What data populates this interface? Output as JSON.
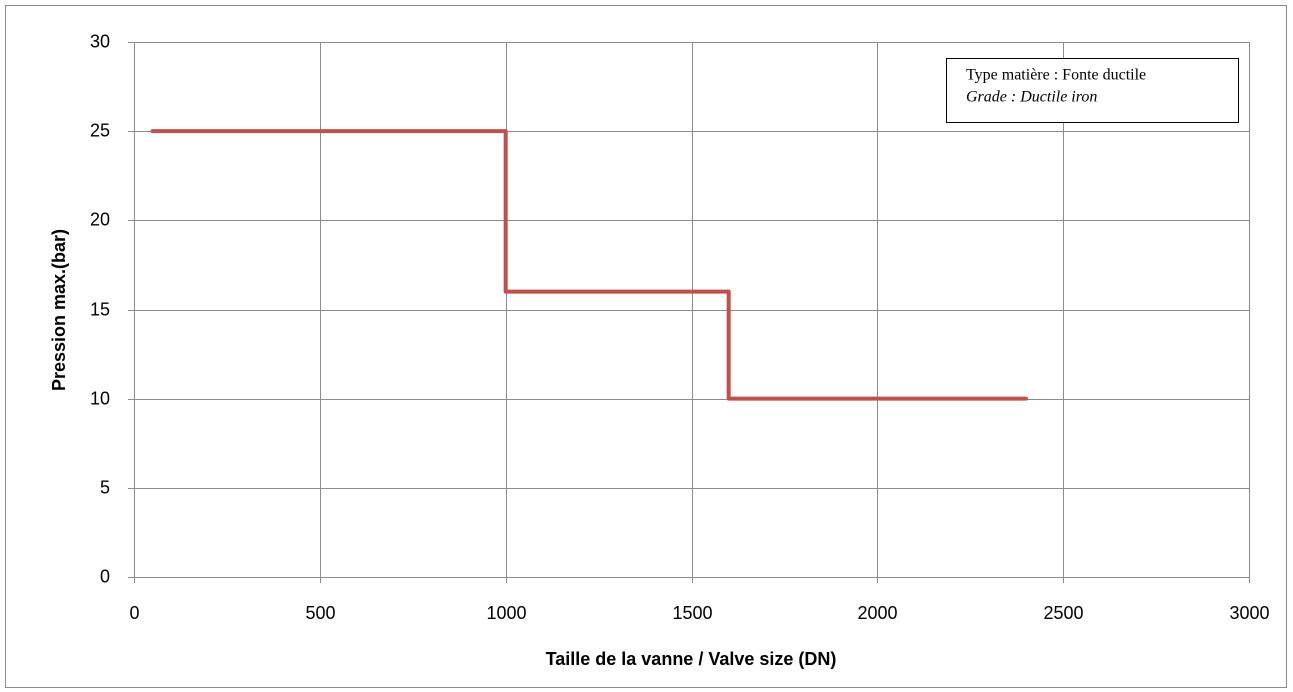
{
  "chart_data": {
    "type": "line",
    "x": [
      50,
      1000,
      1000,
      1600,
      1600,
      2400
    ],
    "values": [
      25,
      25,
      16,
      16,
      10,
      10
    ],
    "color": "#c0504d",
    "xlabel": "Taille de la vanne / Valve size (DN)",
    "ylabel": "Pression max.(bar)",
    "xlim": [
      0,
      3000
    ],
    "xticks": [
      0,
      500,
      1000,
      1500,
      2000,
      2500,
      3000
    ],
    "ylim": [
      0,
      30
    ],
    "yticks": [
      0,
      5,
      10,
      15,
      20,
      25,
      30
    ],
    "grid": true,
    "annotation": [
      "Type matière : Fonte ductile",
      "Grade : Ductile iron"
    ]
  }
}
